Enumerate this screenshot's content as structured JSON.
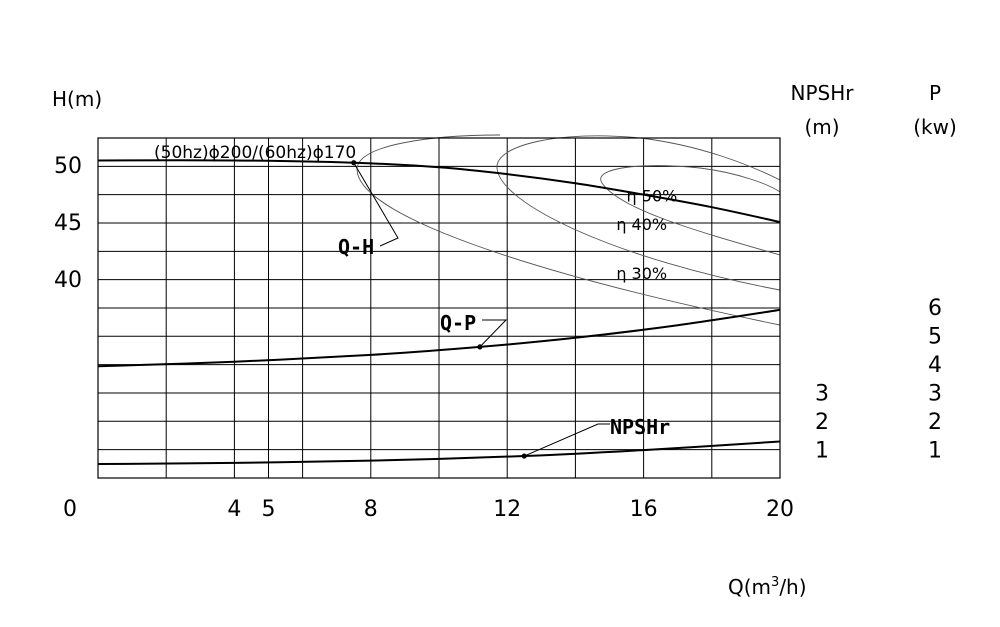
{
  "chart_data": {
    "type": "line",
    "title": "(50hz)ϕ200/(60hz)ϕ170",
    "xlabel": "Q(m³/h)",
    "ylabel_left": "H(m)",
    "ylabel_npsh": [
      "NPSHr",
      "(m)"
    ],
    "ylabel_power": [
      "P",
      "(kw)"
    ],
    "x_range": [
      0,
      20
    ],
    "x_ticks": [
      {
        "value": 0,
        "label": "0"
      },
      {
        "value": 4,
        "label": "4"
      },
      {
        "value": 5,
        "label": "5"
      },
      {
        "value": 8,
        "label": "8"
      },
      {
        "value": 12,
        "label": "12"
      },
      {
        "value": 16,
        "label": "16"
      },
      {
        "value": 20,
        "label": "20"
      }
    ],
    "h_ticks": [
      {
        "value": 50,
        "label": "50"
      },
      {
        "value": 45,
        "label": "45"
      },
      {
        "value": 40,
        "label": "40"
      }
    ],
    "npsh_ticks": [
      {
        "value": 3,
        "label": "3"
      },
      {
        "value": 2,
        "label": "2"
      },
      {
        "value": 1,
        "label": "1"
      }
    ],
    "power_ticks": [
      {
        "value": 6,
        "label": "6"
      },
      {
        "value": 5,
        "label": "5"
      },
      {
        "value": 4,
        "label": "4"
      },
      {
        "value": 3,
        "label": "3"
      },
      {
        "value": 2,
        "label": "2"
      },
      {
        "value": 1,
        "label": "1"
      }
    ],
    "series": [
      {
        "name": "Q-H",
        "axis": "H",
        "x": [
          0,
          4,
          7.5,
          10,
          12,
          14,
          16,
          18,
          20
        ],
        "y": [
          50.4,
          50.4,
          50.2,
          49.8,
          49.2,
          48.4,
          47.4,
          46.3,
          45.0
        ],
        "marker_x": 7.5
      },
      {
        "name": "Q-P",
        "axis": "P",
        "x": [
          0,
          4,
          8,
          11.2,
          14,
          17,
          20
        ],
        "y": [
          3.92,
          4.08,
          4.32,
          4.6,
          4.92,
          5.36,
          5.9
        ],
        "marker_x": 11.2
      },
      {
        "name": "NPSHr",
        "axis": "NPSH",
        "x": [
          0,
          4,
          8,
          12.5,
          16,
          20
        ],
        "y": [
          0.49,
          0.53,
          0.61,
          0.77,
          0.98,
          1.28
        ],
        "marker_x": 12.5
      }
    ],
    "efficiency_curves": [
      {
        "label": "η 30%",
        "label_x": 15.2,
        "label_y": 40.0
      },
      {
        "label": "η 40%",
        "label_x": 15.2,
        "label_y": 44.3
      },
      {
        "label": "η 50%",
        "label_x": 15.5,
        "label_y": 46.8
      }
    ],
    "grid": true
  }
}
